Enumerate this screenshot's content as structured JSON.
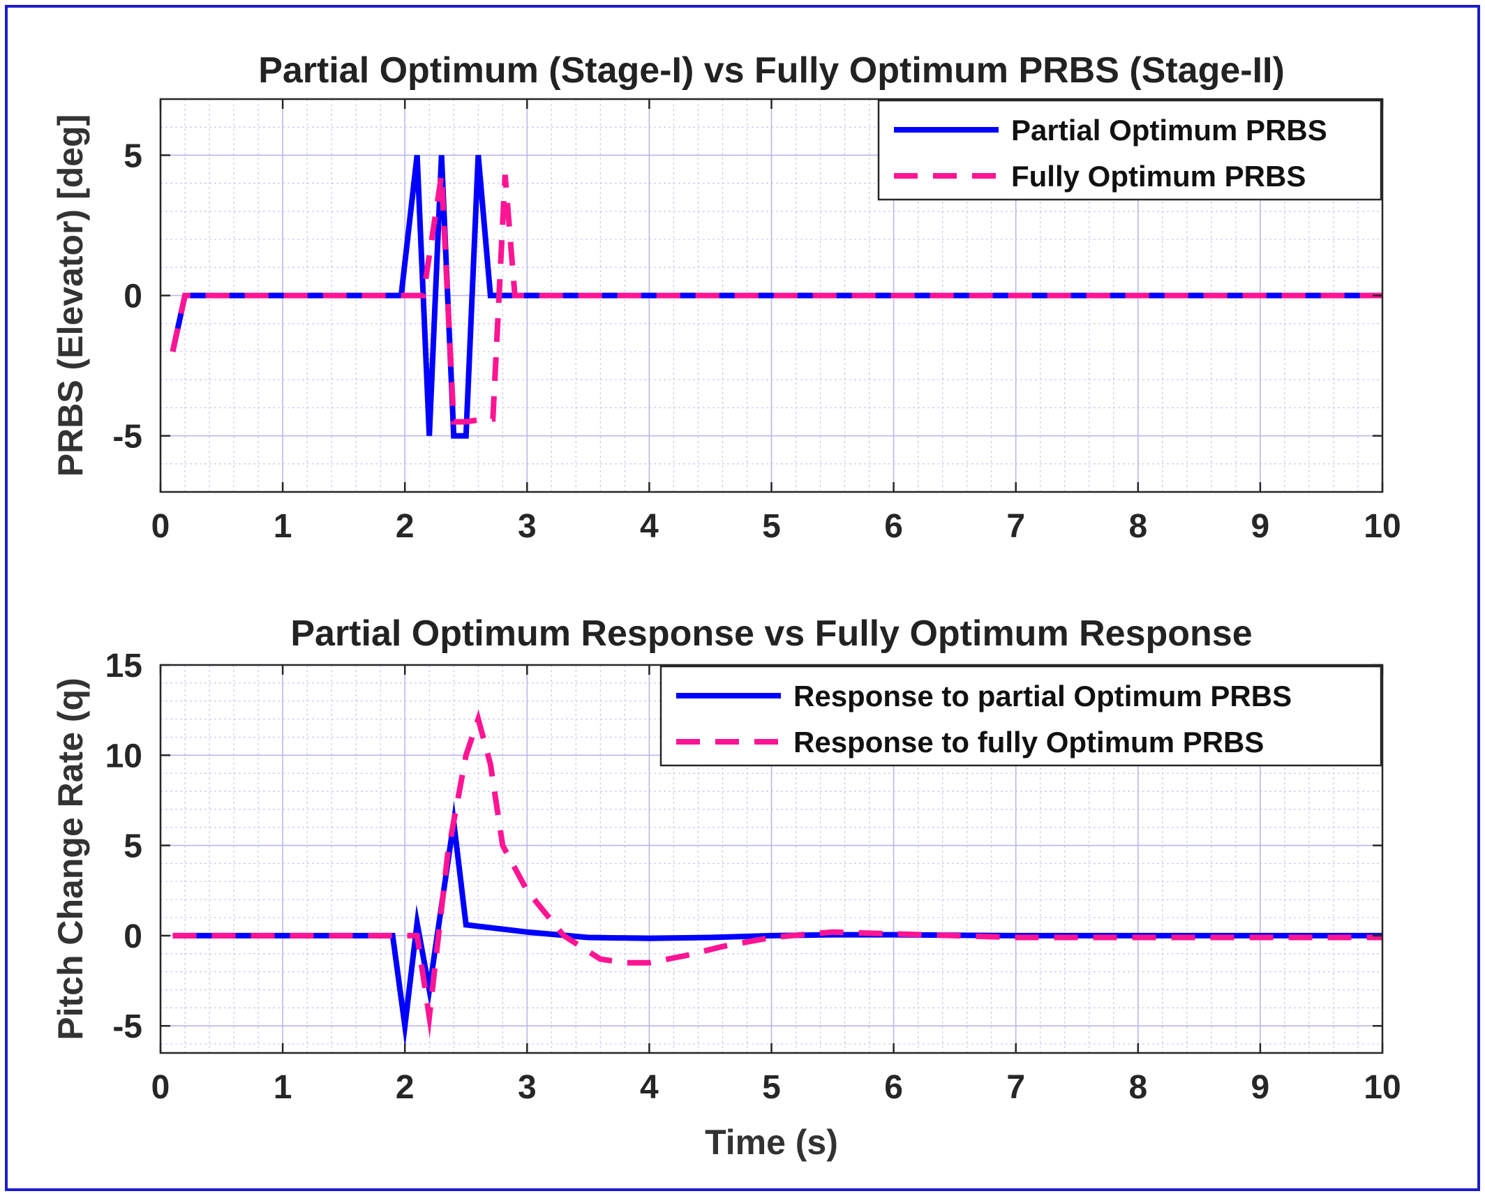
{
  "chart_data": [
    {
      "type": "line",
      "title": "Partial Optimum (Stage-I) vs Fully Optimum PRBS (Stage-II)",
      "xlabel": "",
      "ylabel": "PRBS (Elevator) [deg]",
      "xlim": [
        0,
        10
      ],
      "ylim": [
        -7,
        7
      ],
      "xticks": [
        0,
        1,
        2,
        3,
        4,
        5,
        6,
        7,
        8,
        9,
        10
      ],
      "yticks": [
        -5,
        0,
        5
      ],
      "grid": true,
      "minor_grid": true,
      "legend_position": "top-right",
      "series": [
        {
          "name": "Partial Optimum PRBS",
          "color": "#0000ff",
          "style": "solid",
          "x": [
            0.1,
            0.2,
            1.97,
            2.1,
            2.2,
            2.3,
            2.4,
            2.5,
            2.6,
            2.7,
            10
          ],
          "y": [
            -2,
            0,
            0,
            5,
            -5,
            5,
            -5,
            -5,
            5,
            0,
            0
          ]
        },
        {
          "name": "Fully Optimum PRBS",
          "color": "#ff1493",
          "style": "dashed",
          "x": [
            0.1,
            0.2,
            2.15,
            2.3,
            2.4,
            2.5,
            2.65,
            2.72,
            2.82,
            2.9,
            10
          ],
          "y": [
            -2,
            0,
            0,
            4.3,
            -4.5,
            -4.5,
            -4.4,
            -4.4,
            4.3,
            0,
            0
          ]
        }
      ]
    },
    {
      "type": "line",
      "title": "Partial Optimum Response vs Fully Optimum Response",
      "xlabel": "Time (s)",
      "ylabel": "Pitch Change Rate (q)",
      "xlim": [
        0,
        10
      ],
      "ylim": [
        -6.5,
        15
      ],
      "xticks": [
        0,
        1,
        2,
        3,
        4,
        5,
        6,
        7,
        8,
        9,
        10
      ],
      "yticks": [
        -5,
        0,
        5,
        10,
        15
      ],
      "grid": true,
      "minor_grid": true,
      "legend_position": "top-right",
      "series": [
        {
          "name": "Response to partial Optimum PRBS",
          "color": "#0000ff",
          "style": "solid",
          "x": [
            0.1,
            1.9,
            2.0,
            2.1,
            2.2,
            2.4,
            2.5,
            3.0,
            3.5,
            4.0,
            4.5,
            5.0,
            5.5,
            6.0,
            7.0,
            10
          ],
          "y": [
            0,
            0,
            -5,
            0.7,
            -3,
            6.3,
            0.6,
            0.2,
            -0.1,
            -0.15,
            -0.1,
            0,
            0.05,
            0.05,
            0,
            0
          ]
        },
        {
          "name": "Response to fully Optimum PRBS",
          "color": "#ff1493",
          "style": "dashed",
          "x": [
            0.1,
            2.1,
            2.2,
            2.35,
            2.5,
            2.6,
            2.7,
            2.8,
            3.0,
            3.3,
            3.6,
            3.8,
            4.0,
            4.3,
            4.6,
            5.0,
            5.5,
            6.0,
            6.5,
            7.0,
            10
          ],
          "y": [
            0,
            0,
            -4.5,
            4.5,
            10,
            12,
            9.5,
            5,
            2.5,
            0,
            -1.3,
            -1.5,
            -1.5,
            -1.1,
            -0.6,
            -0.1,
            0.2,
            0.1,
            0,
            -0.1,
            -0.1
          ]
        }
      ]
    }
  ]
}
